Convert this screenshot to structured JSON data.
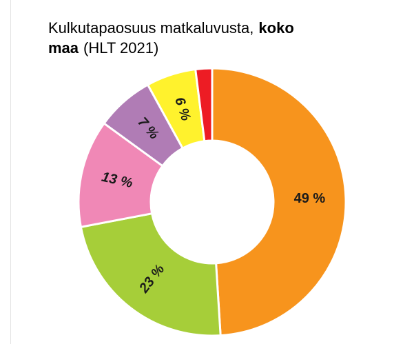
{
  "chart_data": {
    "type": "donut",
    "title_lines": [
      [
        {
          "text": "Kulkutapaosuus matkaluvusta,",
          "bold": false
        },
        {
          "text": "koko",
          "bold": true
        }
      ],
      [
        {
          "text": "maa",
          "bold": true
        },
        {
          "text": "(HLT 2021)",
          "bold": false
        }
      ]
    ],
    "values": [
      49,
      23,
      13,
      7,
      6,
      2
    ],
    "value_labels": [
      "49 %",
      "23 %",
      "13 %",
      "7 %",
      "6 %",
      null
    ],
    "colors": [
      "#f7941d",
      "#a6ce39",
      "#f088b6",
      "#b07cb5",
      "#fff22d",
      "#ed1c24"
    ]
  }
}
